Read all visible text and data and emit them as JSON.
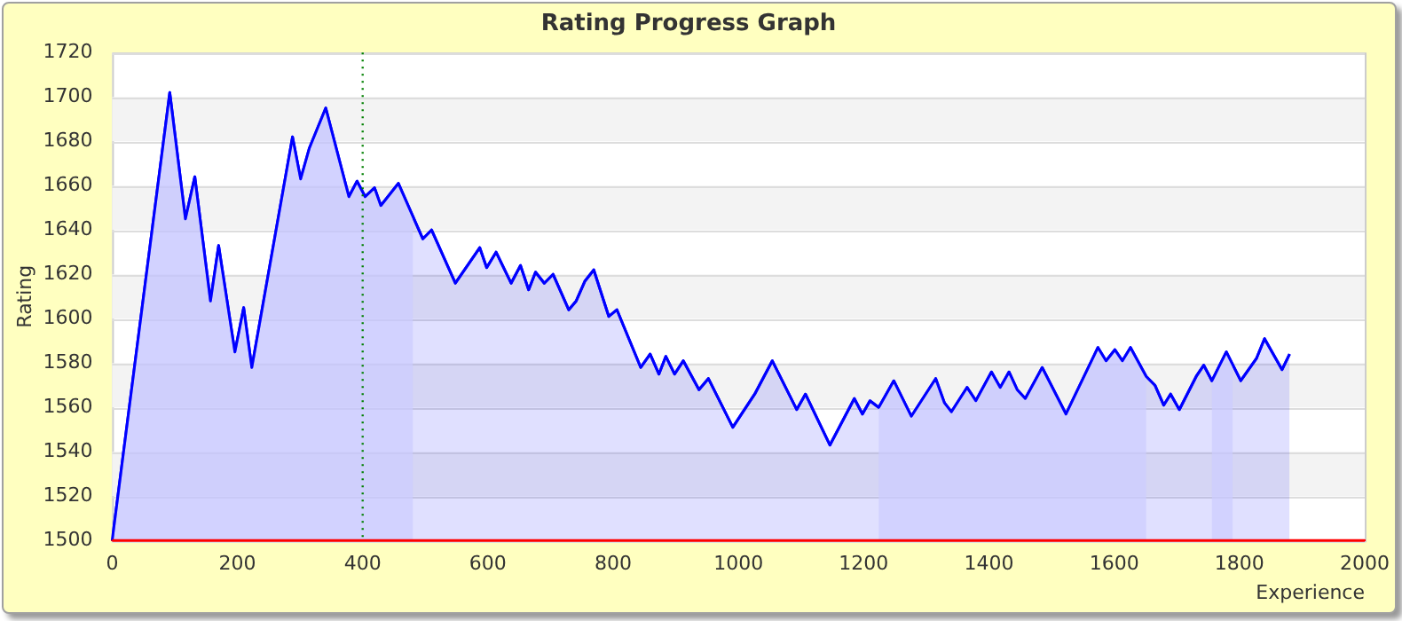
{
  "chart_data": {
    "type": "area",
    "title": "Rating Progress Graph",
    "xlabel": "Experience",
    "ylabel": "Rating",
    "xlim": [
      0,
      2000
    ],
    "xticks": [
      0,
      200,
      400,
      600,
      800,
      1000,
      1200,
      1400,
      1600,
      1800,
      2000
    ],
    "ylim": [
      1500,
      1720
    ],
    "yticks": [
      1500,
      1520,
      1540,
      1560,
      1580,
      1600,
      1620,
      1640,
      1660,
      1680,
      1700,
      1720
    ],
    "grid": "y",
    "legend": false,
    "marker": "none",
    "line_style": "solid",
    "series": [
      {
        "color": "#0000ff",
        "x": [
          0,
          92,
          117,
          132,
          157,
          170,
          196,
          210,
          223,
          288,
          301,
          315,
          341,
          378,
          391,
          404,
          419,
          429,
          457,
          496,
          510,
          548,
          587,
          598,
          613,
          637,
          652,
          665,
          676,
          690,
          704,
          729,
          741,
          755,
          769,
          793,
          806,
          844,
          859,
          873,
          884,
          898,
          912,
          937,
          952,
          991,
          1026,
          1054,
          1093,
          1107,
          1146,
          1185,
          1198,
          1210,
          1224,
          1248,
          1276,
          1315,
          1329,
          1340,
          1365,
          1379,
          1404,
          1418,
          1432,
          1445,
          1458,
          1485,
          1523,
          1574,
          1587,
          1601,
          1613,
          1626,
          1651,
          1665,
          1679,
          1690,
          1704,
          1731,
          1743,
          1756,
          1779,
          1802,
          1827,
          1840,
          1868,
          1880
        ],
        "values": [
          1500,
          1702,
          1645,
          1664,
          1608,
          1633,
          1585,
          1605,
          1578,
          1682,
          1663,
          1677,
          1695,
          1655,
          1662,
          1655,
          1659,
          1651,
          1661,
          1636,
          1640,
          1616,
          1632,
          1623,
          1630,
          1616,
          1624,
          1613,
          1621,
          1616,
          1620,
          1604,
          1608,
          1617,
          1622,
          1601,
          1604,
          1578,
          1584,
          1575,
          1583,
          1575,
          1581,
          1568,
          1573,
          1551,
          1566,
          1581,
          1559,
          1566,
          1543,
          1564,
          1557,
          1563,
          1560,
          1572,
          1556,
          1573,
          1562,
          1558,
          1569,
          1563,
          1576,
          1569,
          1576,
          1568,
          1564,
          1578,
          1557,
          1587,
          1581,
          1586,
          1581,
          1587,
          1574,
          1570,
          1561,
          1566,
          1559,
          1574,
          1579,
          1572,
          1585,
          1572,
          1582,
          1591,
          1577,
          1584
        ]
      }
    ],
    "bands": [
      {
        "axis": "x",
        "from": 0,
        "to": 480,
        "color": "#ccccff"
      },
      {
        "axis": "x",
        "from": 1224,
        "to": 1651,
        "color": "#ccccff"
      },
      {
        "axis": "x",
        "from": 1756,
        "to": 1789,
        "color": "#ccccff"
      }
    ],
    "ref_lines": [
      {
        "axis": "x",
        "value": 400,
        "color": "#008000",
        "line_style": "dotted"
      }
    ]
  }
}
